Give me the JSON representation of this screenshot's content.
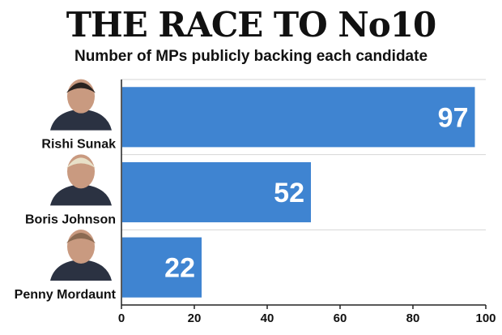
{
  "title": "THE RACE TO No10",
  "subtitle": "Number of MPs publicly backing each candidate",
  "chart_data": {
    "type": "bar",
    "orientation": "horizontal",
    "categories": [
      "Rishi Sunak",
      "Boris Johnson",
      "Penny Mordaunt"
    ],
    "values": [
      97,
      52,
      22
    ],
    "title": "THE RACE TO No10",
    "subtitle": "Number of MPs publicly backing each candidate",
    "xlabel": "",
    "ylabel": "",
    "xlim": [
      0,
      100
    ],
    "xticks": [
      0,
      20,
      40,
      60,
      80,
      100
    ],
    "grid": true,
    "bar_color": "#3f84d1",
    "data_labels": [
      "97",
      "52",
      "22"
    ]
  }
}
